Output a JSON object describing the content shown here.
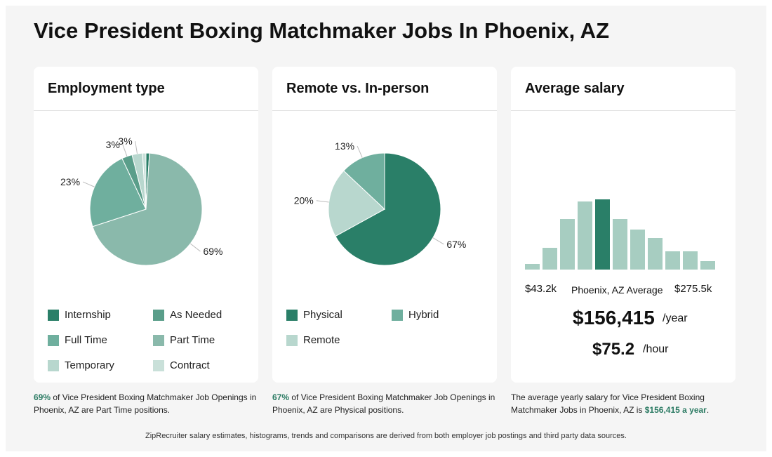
{
  "title": "Vice President Boxing Matchmaker Jobs In Phoenix, AZ",
  "colors": {
    "dark": "#2a7f68",
    "mid": "#6faf9e",
    "light": "#b8d7ce",
    "accent": "#2a7a62"
  },
  "employment": {
    "title": "Employment type",
    "legend": [
      "Internship",
      "As Needed",
      "Full Time",
      "Part Time",
      "Temporary",
      "Contract"
    ],
    "desc": {
      "pct": "69%",
      "text": " of Vice President Boxing Matchmaker Job Openings in Phoenix, AZ are Part Time positions."
    }
  },
  "remote": {
    "title": "Remote vs. In-person",
    "legend": [
      "Physical",
      "Hybrid",
      "Remote"
    ],
    "desc": {
      "pct": "67%",
      "text": " of Vice President Boxing Matchmaker Job Openings in Phoenix, AZ are Physical positions."
    }
  },
  "salary": {
    "title": "Average salary",
    "min_label": "$43.2k",
    "center_label": "Phoenix, AZ Average",
    "max_label": "$275.5k",
    "yearly": "$156,415",
    "yearly_unit": "/year",
    "hourly": "$75.2",
    "hourly_unit": "/hour",
    "desc": {
      "text": "The average yearly salary for Vice President Boxing Matchmaker Jobs in Phoenix, AZ is ",
      "highlight": "$156,415 a year",
      "end": "."
    }
  },
  "footer": "ZipRecruiter salary estimates, histograms, trends and comparisons are derived from both employer job postings and third party data sources.",
  "chart_data": [
    {
      "type": "pie",
      "title": "Employment type",
      "slices": [
        {
          "label": "Internship",
          "value": 1,
          "display": "",
          "color": "#2a7f68"
        },
        {
          "label": "Part Time",
          "value": 69,
          "display": "69%",
          "color": "#8ab9ab"
        },
        {
          "label": "Full Time",
          "value": 23,
          "display": "23%",
          "color": "#6faf9e"
        },
        {
          "label": "As Needed",
          "value": 3,
          "display": "3%",
          "color": "#5a9e8a"
        },
        {
          "label": "Temporary",
          "value": 3,
          "display": "3%",
          "color": "#b8d7ce"
        },
        {
          "label": "Contract",
          "value": 1,
          "display": "",
          "color": "#c9e0d9"
        }
      ]
    },
    {
      "type": "pie",
      "title": "Remote vs. In-person",
      "slices": [
        {
          "label": "Physical",
          "value": 67,
          "display": "67%",
          "color": "#2a7f68"
        },
        {
          "label": "Remote",
          "value": 20,
          "display": "20%",
          "color": "#b8d7ce"
        },
        {
          "label": "Hybrid",
          "value": 13,
          "display": "13%",
          "color": "#6faf9e"
        }
      ]
    },
    {
      "type": "bar",
      "title": "Average salary",
      "values": [
        8,
        31,
        72,
        97,
        100,
        72,
        57,
        45,
        26,
        26,
        12
      ],
      "highlight_index": 4,
      "colors": {
        "normal": "#a7cdc1",
        "highlight": "#2a7f68"
      }
    }
  ]
}
